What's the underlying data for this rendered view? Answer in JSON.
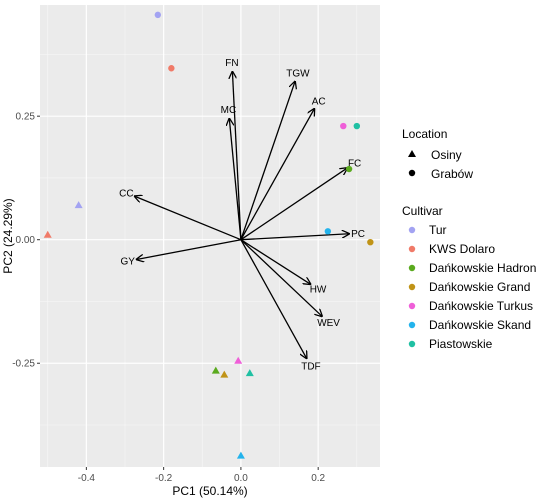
{
  "chart_data": {
    "type": "scatter",
    "xlabel": "PC1 (50.14%)",
    "ylabel": "PC2 (24.29%)",
    "xlim": [
      -0.52,
      0.36
    ],
    "ylim": [
      -0.46,
      0.475
    ],
    "xticks": [
      -0.4,
      -0.2,
      0.0,
      0.2
    ],
    "xtick_labels": [
      "-0.4",
      "-0.2",
      "0.0",
      "0.2"
    ],
    "yticks": [
      -0.25,
      0.0,
      0.25
    ],
    "ytick_labels": [
      "-0.25",
      "0.00",
      "0.25"
    ],
    "grid": true,
    "legend_placement": "right",
    "location_legend": {
      "title": "Location",
      "items": [
        {
          "label": "Osiny",
          "shape": "triangle"
        },
        {
          "label": "Grabów",
          "shape": "circle"
        }
      ]
    },
    "cultivar_legend": {
      "title": "Cultivar",
      "items": [
        {
          "label": "Tur",
          "color": "#a3a3f2"
        },
        {
          "label": "KWS Dolaro",
          "color": "#f07a68"
        },
        {
          "label": "Dańkowskie Hadron",
          "color": "#5aaa1e"
        },
        {
          "label": "Dańkowskie Grand",
          "color": "#c09316"
        },
        {
          "label": "Dańkowskie Turkus",
          "color": "#ef5fd8"
        },
        {
          "label": "Dańkowskie Skand",
          "color": "#23b3ec"
        },
        {
          "label": "Piastowskie",
          "color": "#20c0a3"
        }
      ]
    },
    "points": [
      {
        "cultivar": "Tur",
        "location": "Grabów",
        "x": -0.215,
        "y": 0.455
      },
      {
        "cultivar": "KWS Dolaro",
        "location": "Grabów",
        "x": -0.18,
        "y": 0.347
      },
      {
        "cultivar": "Tur",
        "location": "Osiny",
        "x": -0.42,
        "y": 0.07
      },
      {
        "cultivar": "KWS Dolaro",
        "location": "Osiny",
        "x": -0.5,
        "y": 0.01
      },
      {
        "cultivar": "Dańkowskie Turkus",
        "location": "Grabów",
        "x": 0.265,
        "y": 0.23
      },
      {
        "cultivar": "Piastowskie",
        "location": "Grabów",
        "x": 0.3,
        "y": 0.23
      },
      {
        "cultivar": "Dańkowskie Hadron",
        "location": "Grabów",
        "x": 0.28,
        "y": 0.143
      },
      {
        "cultivar": "Dańkowskie Skand",
        "location": "Grabów",
        "x": 0.225,
        "y": 0.017
      },
      {
        "cultivar": "Dańkowskie Grand",
        "location": "Grabów",
        "x": 0.335,
        "y": -0.005
      },
      {
        "cultivar": "Dańkowskie Hadron",
        "location": "Osiny",
        "x": -0.065,
        "y": -0.265
      },
      {
        "cultivar": "Dańkowskie Grand",
        "location": "Osiny",
        "x": -0.043,
        "y": -0.273
      },
      {
        "cultivar": "Dańkowskie Turkus",
        "location": "Osiny",
        "x": -0.007,
        "y": -0.245
      },
      {
        "cultivar": "Piastowskie",
        "location": "Osiny",
        "x": 0.023,
        "y": -0.27
      },
      {
        "cultivar": "Dańkowskie Skand",
        "location": "Osiny",
        "x": 0.0,
        "y": -0.437
      }
    ],
    "vectors": [
      {
        "label": "FN",
        "x": -0.022,
        "y": 0.34
      },
      {
        "label": "TGW",
        "x": 0.14,
        "y": 0.32
      },
      {
        "label": "AC",
        "x": 0.19,
        "y": 0.265
      },
      {
        "label": "MC",
        "x": -0.03,
        "y": 0.245
      },
      {
        "label": "FC",
        "x": 0.275,
        "y": 0.145
      },
      {
        "label": "CC",
        "x": -0.275,
        "y": 0.088
      },
      {
        "label": "PC",
        "x": 0.28,
        "y": 0.012
      },
      {
        "label": "GY",
        "x": -0.27,
        "y": -0.04
      },
      {
        "label": "HW",
        "x": 0.18,
        "y": -0.09
      },
      {
        "label": "WEV",
        "x": 0.21,
        "y": -0.155
      },
      {
        "label": "TDF",
        "x": 0.17,
        "y": -0.24
      }
    ]
  }
}
